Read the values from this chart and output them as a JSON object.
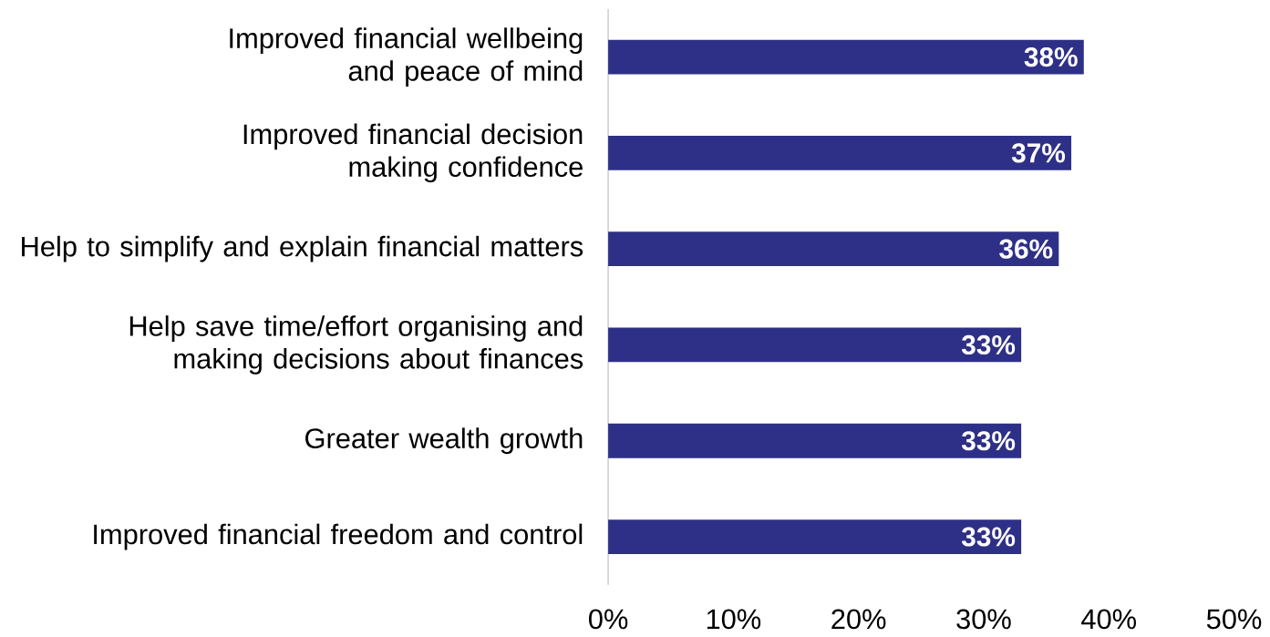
{
  "chart_data": {
    "type": "bar",
    "orientation": "horizontal",
    "categories": [
      "Improved financial wellbeing and peace of mind",
      "Improved financial decision making confidence",
      "Help to simplify and explain financial matters",
      "Help save time/effort organising and making decisions about finances",
      "Greater wealth growth",
      "Improved financial freedom and control"
    ],
    "values": [
      38,
      37,
      36,
      33,
      33,
      33
    ],
    "value_labels": [
      "38%",
      "37%",
      "36%",
      "33%",
      "33%",
      "33%"
    ],
    "color": "#2e3087",
    "xlim": [
      0,
      50
    ],
    "xticks": [
      {
        "value": 0,
        "label": "0%"
      },
      {
        "value": 10,
        "label": "10%"
      },
      {
        "value": 20,
        "label": "20%"
      },
      {
        "value": 30,
        "label": "30%"
      },
      {
        "value": 40,
        "label": "40%"
      },
      {
        "value": 50,
        "label": "50%"
      }
    ]
  }
}
